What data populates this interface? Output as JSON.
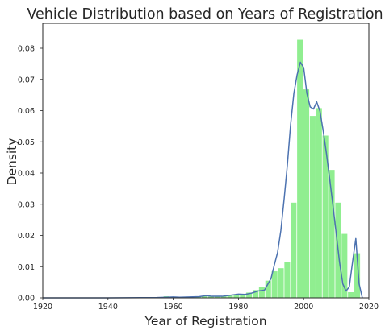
{
  "chart_data": {
    "type": "bar",
    "title": "Vehicle Distribution based on Years of Registration",
    "xlabel": "Year of Registration",
    "ylabel": "Density",
    "xlim": [
      1920,
      2020
    ],
    "ylim": [
      0,
      0.088
    ],
    "x_ticks": [
      "1920",
      "1940",
      "1960",
      "1980",
      "2000",
      "2020"
    ],
    "y_ticks": [
      "0.00",
      "0.01",
      "0.02",
      "0.03",
      "0.04",
      "0.05",
      "0.06",
      "0.07",
      "0.08"
    ],
    "grid": false,
    "colors": {
      "bars": "#90ee90",
      "kde": "#4c72b0",
      "frame": "#262626",
      "text": "#262626"
    },
    "histogram": {
      "bin_start": 1920,
      "bin_width": 1.95,
      "values": [
        0.0,
        0.0,
        0.0,
        0.0,
        0.0,
        0.0,
        0.0,
        0.0,
        0.0,
        0.0,
        0.0,
        0.0,
        0.0,
        0.0,
        0.0,
        0.0,
        0.0,
        0.0,
        0.0,
        0.0005,
        0.0,
        0.0,
        0.0,
        0.0002,
        0.0003,
        0.0005,
        0.0004,
        0.0004,
        0.0005,
        0.0007,
        0.001,
        0.0012,
        0.0017,
        0.0025,
        0.0035,
        0.0055,
        0.0085,
        0.0095,
        0.0115,
        0.0305,
        0.0827,
        0.0668,
        0.0583,
        0.0608,
        0.052,
        0.041,
        0.0305,
        0.0205,
        0.0018,
        0.0143
      ]
    },
    "kde": {
      "x": [
        1920,
        1940,
        1955,
        1958,
        1960,
        1962,
        1965,
        1968,
        1970,
        1972,
        1975,
        1978,
        1980,
        1982,
        1984,
        1986,
        1988,
        1990,
        1991,
        1992,
        1993,
        1994,
        1995,
        1996,
        1997,
        1998,
        1999,
        2000,
        2001,
        2002,
        2003,
        2004,
        2005,
        2006,
        2007,
        2008,
        2009,
        2010,
        2011,
        2012,
        2013,
        2014,
        2015,
        2016,
        2017,
        2018
      ],
      "y": [
        0.0,
        0.0,
        0.0001,
        0.0002,
        0.0003,
        0.0002,
        0.0003,
        0.0004,
        0.0007,
        0.0005,
        0.0005,
        0.0009,
        0.0012,
        0.0011,
        0.0015,
        0.0022,
        0.0025,
        0.0062,
        0.0105,
        0.0145,
        0.0215,
        0.0315,
        0.0425,
        0.0555,
        0.0655,
        0.0715,
        0.0755,
        0.0738,
        0.0655,
        0.0612,
        0.0605,
        0.0628,
        0.0598,
        0.0535,
        0.0462,
        0.038,
        0.0295,
        0.0205,
        0.0115,
        0.0045,
        0.0022,
        0.0035,
        0.0115,
        0.019,
        0.0045,
        0.0
      ]
    }
  }
}
